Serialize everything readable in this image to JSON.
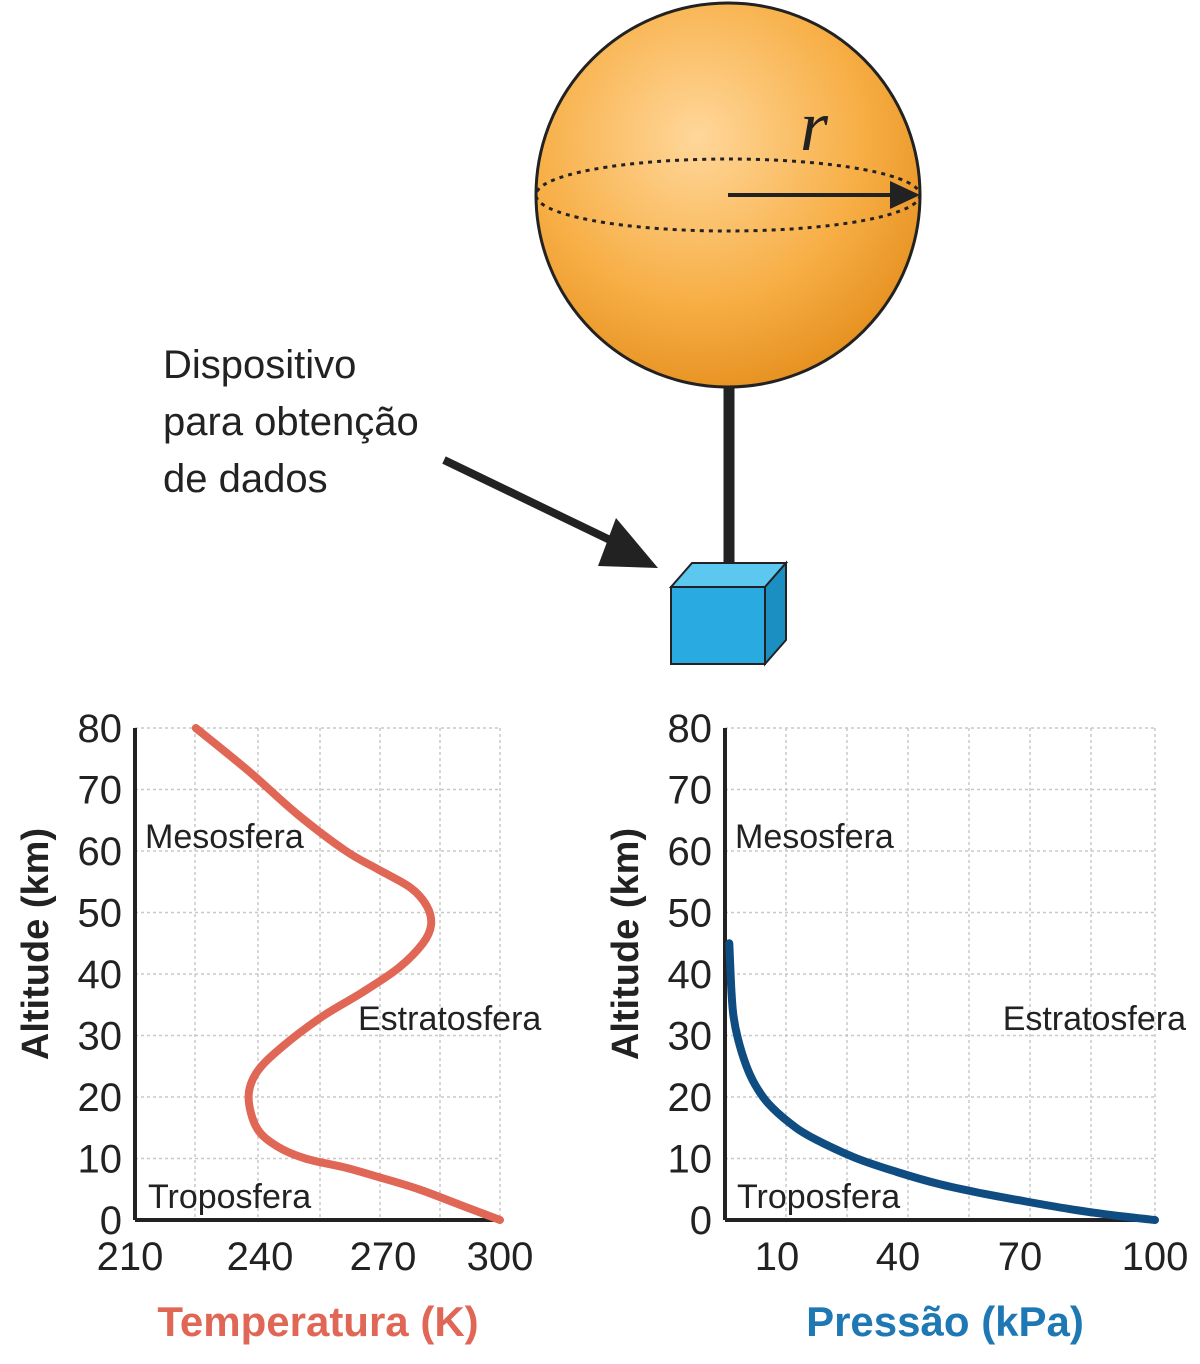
{
  "balloon": {
    "radius_label": "r",
    "device_caption": [
      "Dispositivo",
      "para obtenção",
      "de dados"
    ],
    "colors": {
      "balloon": "#F5A623",
      "device": "#29ABE2"
    }
  },
  "chart_data": [
    {
      "type": "line",
      "ylabel": "Altitude (km)",
      "xlabel": "Temperatura (K)",
      "xlabel_color": "#E06655",
      "line_color": "#E06655",
      "xlim": [
        210,
        300
      ],
      "ylim": [
        0,
        80
      ],
      "xticks": [
        "210",
        "240",
        "270",
        "300"
      ],
      "yticks": [
        "0",
        "10",
        "20",
        "30",
        "40",
        "50",
        "60",
        "70",
        "80"
      ],
      "grid": true,
      "region_labels": [
        "Mesosfera",
        "Estratosfera",
        "Troposfera"
      ],
      "series": [
        {
          "x": [
            300,
            290,
            280,
            270,
            262,
            252,
            245,
            240,
            238,
            240,
            246,
            256,
            266,
            275,
            281,
            283,
            282,
            278,
            270,
            262,
            250,
            238,
            225
          ],
          "y": [
            0,
            2.5,
            5,
            7,
            8.5,
            10,
            12,
            15,
            20,
            24,
            28,
            33,
            37,
            41,
            45,
            48,
            51,
            54,
            57,
            60,
            66,
            73,
            80
          ]
        }
      ]
    },
    {
      "type": "line",
      "ylabel": "Altitude (km)",
      "xlabel": "Pressão (kPa)",
      "xlabel_color": "#1E78B4",
      "line_color": "#0F4C81",
      "xlim": [
        0,
        100
      ],
      "ylim": [
        0,
        80
      ],
      "xticks": [
        "10",
        "40",
        "70",
        "100"
      ],
      "yticks": [
        "0",
        "10",
        "20",
        "30",
        "40",
        "50",
        "60",
        "70",
        "80"
      ],
      "grid": true,
      "region_labels": [
        "Mesosfera",
        "Estratosfera",
        "Troposfera"
      ],
      "series": [
        {
          "x": [
            100,
            90,
            80,
            70,
            60,
            50,
            40,
            30,
            20,
            15,
            10,
            7,
            5,
            3,
            2,
            1.5,
            1
          ],
          "y": [
            0,
            0.8,
            1.8,
            3,
            4.3,
            5.8,
            7.8,
            10.2,
            13.5,
            15.8,
            19,
            22,
            25,
            29.5,
            33,
            37,
            45
          ]
        }
      ]
    }
  ]
}
